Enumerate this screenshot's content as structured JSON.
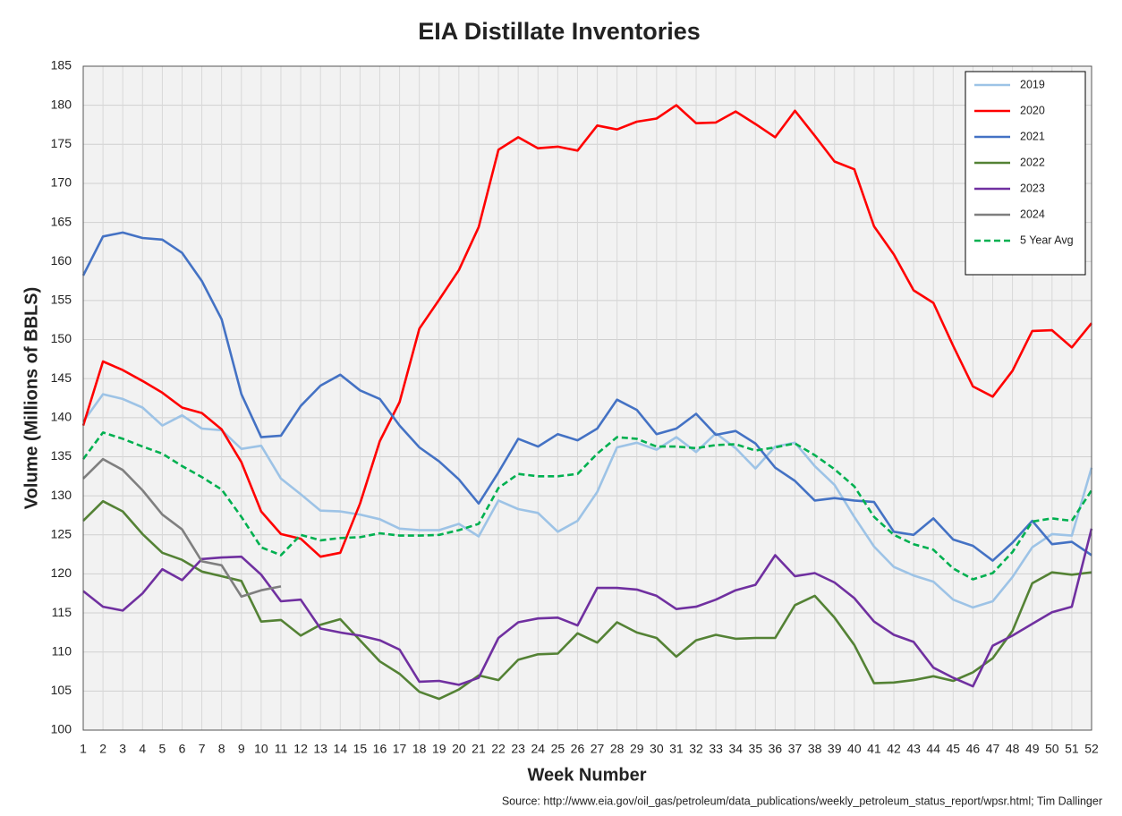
{
  "chart_data": {
    "type": "line",
    "title": "EIA Distillate Inventories",
    "x_label": "Week Number",
    "y_label": "Volume (Millions of BBLS)",
    "source": "Source: http://www.eia.gov/oil_gas/petroleum/data_publications/weekly_petroleum_status_report/wpsr.html; Tim Dallinger",
    "categories": [
      "1",
      "2",
      "3",
      "4",
      "5",
      "6",
      "7",
      "8",
      "9",
      "10",
      "11",
      "12",
      "13",
      "14",
      "15",
      "16",
      "17",
      "18",
      "19",
      "20",
      "21",
      "22",
      "23",
      "24",
      "25",
      "26",
      "27",
      "28",
      "29",
      "30",
      "31",
      "32",
      "33",
      "34",
      "35",
      "36",
      "37",
      "38",
      "39",
      "40",
      "41",
      "42",
      "43",
      "44",
      "45",
      "46",
      "47",
      "48",
      "49",
      "50",
      "51",
      "52"
    ],
    "ylim": [
      100,
      185
    ],
    "yticks": [
      100,
      105,
      110,
      115,
      120,
      125,
      130,
      135,
      140,
      145,
      150,
      155,
      160,
      165,
      170,
      175,
      180,
      185
    ],
    "grid": true,
    "legend": "upper right",
    "series": [
      {
        "name": "2019",
        "color": "#9dc3e6",
        "dashed": false,
        "values": [
          139.5,
          143,
          142.4,
          141.3,
          139,
          140.3,
          138.6,
          138.4,
          136,
          136.4,
          132.2,
          130.2,
          128.1,
          128,
          127.6,
          127,
          125.8,
          125.6,
          125.6,
          126.4,
          124.8,
          129.4,
          128.3,
          127.8,
          125.4,
          126.8,
          130.5,
          136.2,
          136.8,
          135.9,
          137.5,
          135.6,
          138,
          136.1,
          133.5,
          136.3,
          136.8,
          133.8,
          131.4,
          127.3,
          123.5,
          120.9,
          119.8,
          119,
          116.7,
          115.7,
          116.5,
          119.6,
          123.4,
          125.1,
          124.9,
          133.6
        ]
      },
      {
        "name": "2020",
        "color": "#ff0000",
        "dashed": false,
        "values": [
          139,
          147.2,
          146.1,
          144.7,
          143.2,
          141.3,
          140.6,
          138.5,
          134.3,
          128,
          125.1,
          124.5,
          122.2,
          122.7,
          129,
          137,
          142,
          151.4,
          155.1,
          158.9,
          164.4,
          174.3,
          175.9,
          174.5,
          174.7,
          174.2,
          177.4,
          176.9,
          177.9,
          178.3,
          180,
          177.7,
          177.8,
          179.2,
          177.6,
          175.9,
          179.3,
          176.1,
          172.8,
          171.8,
          164.5,
          160.9,
          156.3,
          154.7,
          149.2,
          144,
          142.7,
          146,
          151.1,
          151.2,
          149,
          152.1
        ]
      },
      {
        "name": "2021",
        "color": "#4472c4",
        "dashed": false,
        "values": [
          158.2,
          163.2,
          163.7,
          163,
          162.8,
          161.1,
          157.5,
          152.6,
          143,
          137.5,
          137.7,
          141.5,
          144.1,
          145.5,
          143.5,
          142.4,
          139,
          136.2,
          134.4,
          132.1,
          129,
          133,
          137.3,
          136.3,
          137.9,
          137.1,
          138.6,
          142.3,
          141,
          137.9,
          138.6,
          140.5,
          137.8,
          138.3,
          136.7,
          133.6,
          131.9,
          129.4,
          129.7,
          129.4,
          129.2,
          125.4,
          125,
          127.1,
          124.4,
          123.6,
          121.7,
          124,
          126.8,
          123.8,
          124.1,
          122.4
        ]
      },
      {
        "name": "2022",
        "color": "#548235",
        "dashed": false,
        "values": [
          126.8,
          129.3,
          128,
          125.1,
          122.7,
          121.8,
          120.3,
          119.7,
          119.1,
          113.9,
          114.1,
          112.1,
          113.5,
          114.2,
          111.5,
          108.8,
          107.2,
          104.9,
          104,
          105.2,
          107,
          106.4,
          109,
          109.7,
          109.8,
          112.4,
          111.2,
          113.8,
          112.5,
          111.8,
          109.4,
          111.5,
          112.2,
          111.7,
          111.8,
          111.8,
          116,
          117.2,
          114.4,
          110.9,
          106,
          106.1,
          106.4,
          106.9,
          106.3,
          107.4,
          109.2,
          112.7,
          118.8,
          120.2,
          119.9,
          120.2
        ]
      },
      {
        "name": "2023",
        "color": "#7030a0",
        "dashed": false,
        "values": [
          117.8,
          115.8,
          115.3,
          117.5,
          120.6,
          119.2,
          121.9,
          122.1,
          122.2,
          119.9,
          116.5,
          116.7,
          113,
          112.5,
          112.1,
          111.5,
          110.3,
          106.2,
          106.3,
          105.8,
          106.7,
          111.8,
          113.8,
          114.3,
          114.4,
          113.4,
          118.2,
          118.2,
          118,
          117.2,
          115.5,
          115.8,
          116.7,
          117.9,
          118.6,
          122.4,
          119.7,
          120.1,
          118.9,
          116.9,
          113.9,
          112.2,
          111.3,
          108,
          106.7,
          105.6,
          110.8,
          112.1,
          113.6,
          115.1,
          115.8,
          125.8
        ]
      },
      {
        "name": "2024",
        "color": "#7f7f7f",
        "dashed": false,
        "values": [
          132.2,
          134.7,
          133.3,
          130.7,
          127.6,
          125.7,
          121.6,
          121.1,
          117.1,
          117.9,
          118.4,
          null,
          null,
          null,
          null,
          null,
          null,
          null,
          null,
          null,
          null,
          null,
          null,
          null,
          null,
          null,
          null,
          null,
          null,
          null,
          null,
          null,
          null,
          null,
          null,
          null,
          null,
          null,
          null,
          null,
          null,
          null,
          null,
          null,
          null,
          null,
          null,
          null,
          null,
          null,
          null,
          null
        ]
      },
      {
        "name": "5 Year Avg",
        "color": "#00b050",
        "dashed": true,
        "values": [
          134.7,
          138.1,
          137.3,
          136.3,
          135.4,
          133.8,
          132.4,
          130.8,
          127.3,
          123.4,
          122.4,
          125,
          124.3,
          124.6,
          124.7,
          125.2,
          124.9,
          124.9,
          125,
          125.6,
          126.4,
          131,
          132.8,
          132.5,
          132.5,
          132.8,
          135.4,
          137.5,
          137.3,
          136.3,
          136.3,
          136.1,
          136.5,
          136.6,
          135.8,
          136.2,
          136.7,
          135.2,
          133.4,
          131.2,
          127.3,
          125,
          123.8,
          123.1,
          120.7,
          119.3,
          120.1,
          122.8,
          126.7,
          127.1,
          126.8,
          130.7
        ]
      }
    ]
  }
}
